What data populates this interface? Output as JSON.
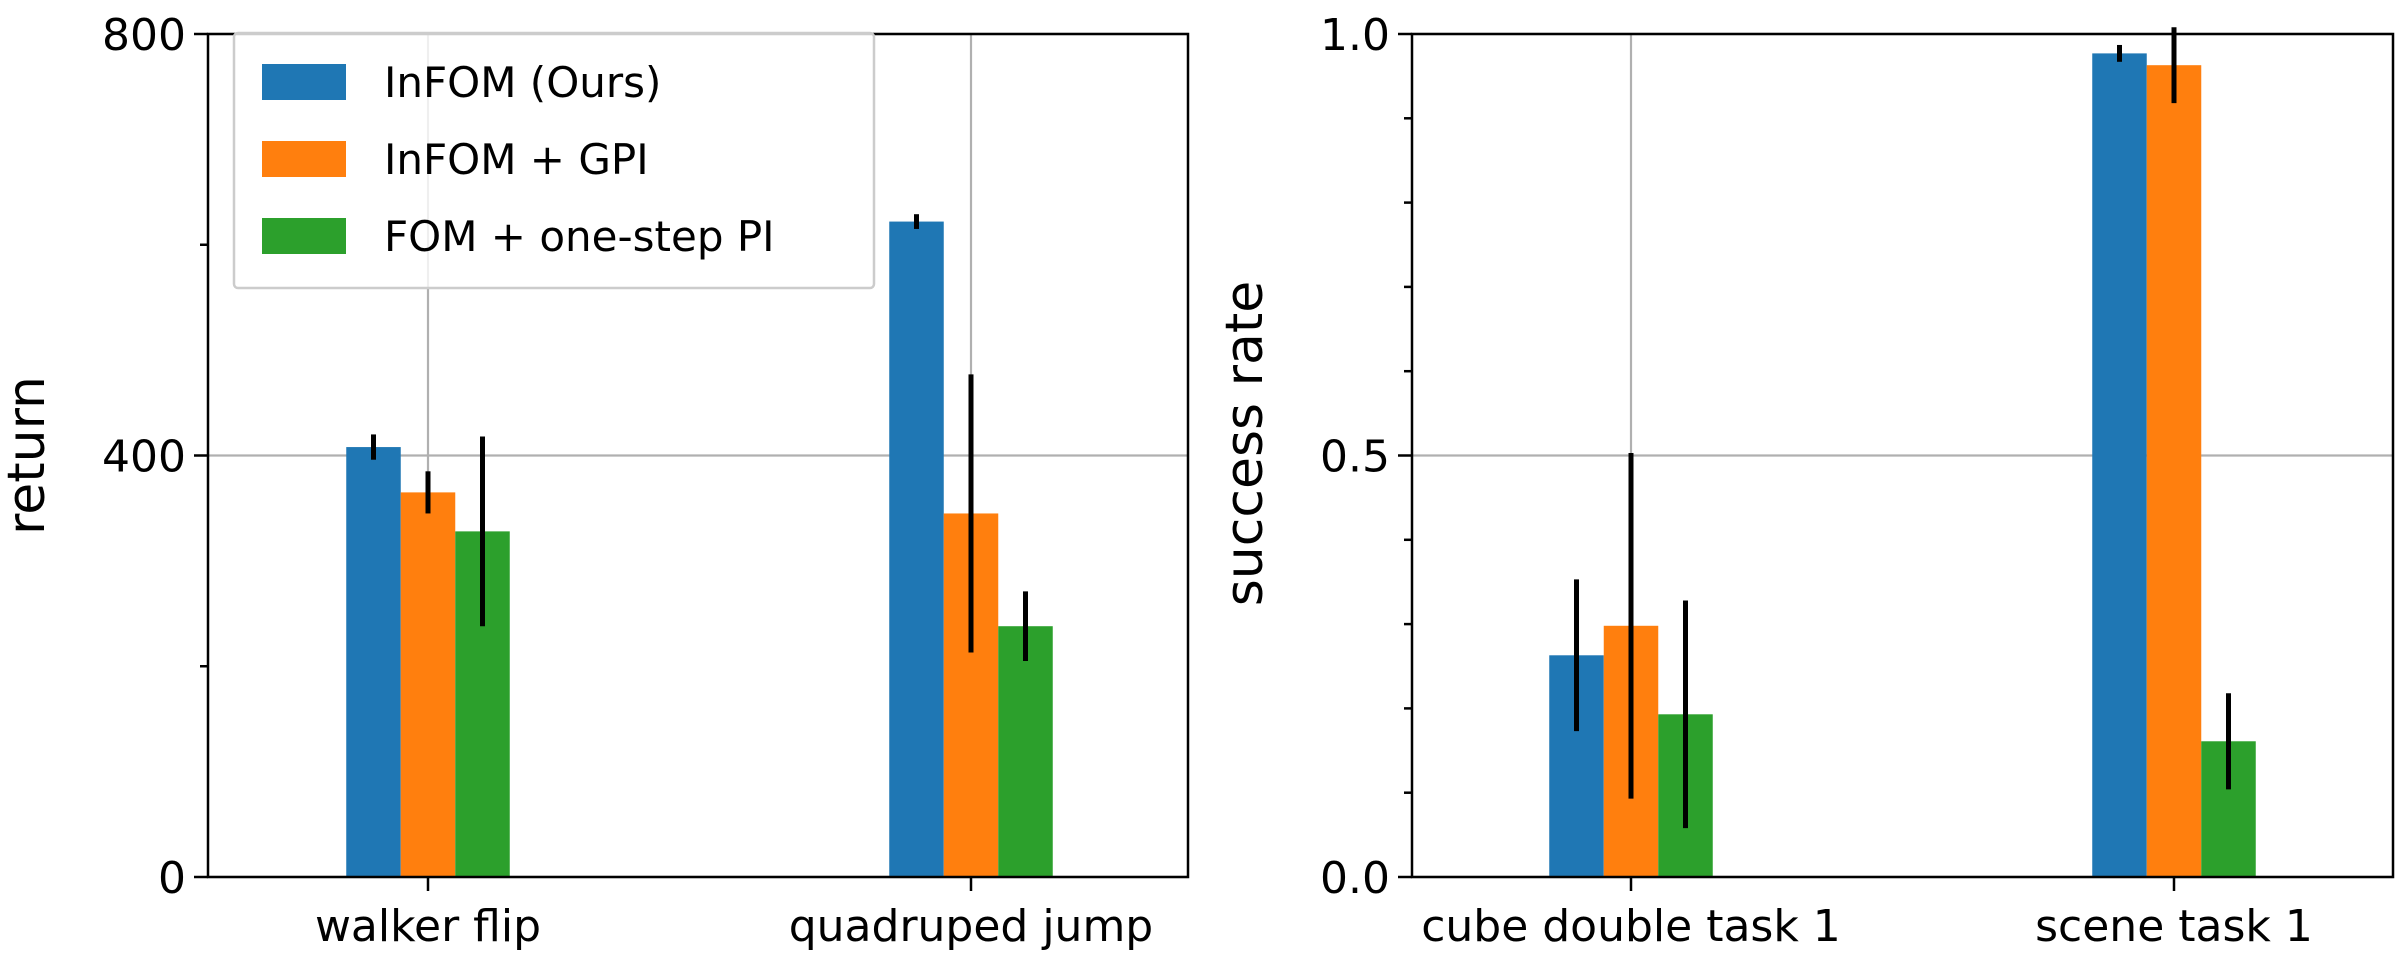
{
  "chart_data": [
    {
      "type": "bar",
      "title": "",
      "xlabel": "",
      "ylabel": "return",
      "categories": [
        "walker flip",
        "quadruped jump"
      ],
      "ylim": [
        0,
        800
      ],
      "yticks": [
        0,
        400,
        800
      ],
      "ytick_labels": [
        "0",
        "400",
        "800"
      ],
      "minor_yticks": [
        200,
        600
      ],
      "grid": true,
      "legend_position": "upper-left",
      "series": [
        {
          "name": "InFOM (Ours)",
          "color": "#1f77b4",
          "values": [
            408,
            622
          ],
          "errors": [
            12,
            7
          ]
        },
        {
          "name": "InFOM + GPI",
          "color": "#ff7f0e",
          "values": [
            365,
            345
          ],
          "errors": [
            20,
            132
          ]
        },
        {
          "name": "FOM + one-step PI",
          "color": "#2ca02c",
          "values": [
            328,
            238
          ],
          "errors": [
            90,
            33
          ]
        }
      ]
    },
    {
      "type": "bar",
      "title": "",
      "xlabel": "",
      "ylabel": "success rate",
      "categories": [
        "cube double task 1",
        "scene task 1"
      ],
      "ylim": [
        0,
        1.0
      ],
      "yticks": [
        0.0,
        0.5,
        1.0
      ],
      "ytick_labels": [
        "0.0",
        "0.5",
        "1.0"
      ],
      "minor_yticks": [
        0.1,
        0.2,
        0.3,
        0.4,
        0.6,
        0.7,
        0.8,
        0.9
      ],
      "grid": true,
      "series": [
        {
          "name": "InFOM (Ours)",
          "color": "#1f77b4",
          "values": [
            0.263,
            0.977
          ],
          "errors": [
            0.09,
            0.01
          ]
        },
        {
          "name": "InFOM + GPI",
          "color": "#ff7f0e",
          "values": [
            0.298,
            0.963
          ],
          "errors": [
            0.205,
            0.045
          ]
        },
        {
          "name": "FOM + one-step PI",
          "color": "#2ca02c",
          "values": [
            0.193,
            0.161
          ],
          "errors": [
            0.135,
            0.057
          ]
        }
      ]
    }
  ]
}
